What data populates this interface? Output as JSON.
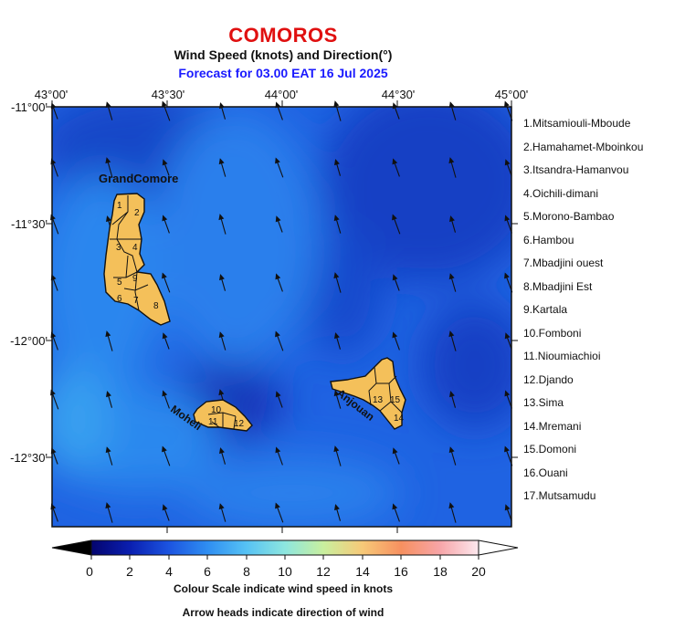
{
  "header": {
    "country": "COMOROS",
    "subtitle": "Wind Speed (knots) and Direction(°)",
    "forecast": "Forecast for  03.00 EAT 16 Jul 2025"
  },
  "axes": {
    "top_lon_labels": [
      "43°00'",
      "43°30'",
      "44°00'",
      "44°30'",
      "45°00'"
    ],
    "left_lat_labels": [
      "-11°00'",
      "-11°30'",
      "-12°00'",
      "-12°30'"
    ]
  },
  "islands": {
    "grand_comore": "GrandComore",
    "moheli": "Moheli",
    "anjouan": "Anjouan"
  },
  "region_numbers": [
    "1",
    "2",
    "3",
    "4",
    "5",
    "6",
    "7",
    "8",
    "9",
    "10",
    "11",
    "12",
    "13",
    "14",
    "15"
  ],
  "legend": [
    "1.Mitsamiouli-Mboude",
    "2.Hamahamet-Mboinkou",
    "3.Itsandra-Hamanvou",
    "4.Oichili-dimani",
    "5.Morono-Bambao",
    "6.Hambou",
    "7.Mbadjini ouest",
    "8.Mbadjini Est",
    "9.Kartala",
    "10.Fomboni",
    "11.Nioumiachioi",
    "12.Djando",
    "13.Sima",
    "14.Mremani",
    "15.Domoni",
    "16.Ouani",
    "17.Mutsamudu"
  ],
  "colorbar": {
    "ticks": [
      "0",
      "2",
      "4",
      "6",
      "8",
      "10",
      "12",
      "14",
      "16",
      "18",
      "20"
    ],
    "min": 0,
    "max": 20,
    "unit": "knots",
    "colors": [
      "#000000",
      "#0a1fb0",
      "#1c54e0",
      "#2f8ef2",
      "#56c2f4",
      "#8de6df",
      "#c9ef9e",
      "#f7c978",
      "#f79060",
      "#f7a5a8",
      "#fde0e8",
      "#ffffff"
    ]
  },
  "captions": {
    "line1": "Colour Scale indicate wind speed in knots",
    "line2": "Arrow heads indicate direction of wind"
  },
  "wind_field": {
    "speed_range_knots": [
      2,
      7
    ],
    "direction": "from south-southeast",
    "land_color": "#f4c05a"
  }
}
